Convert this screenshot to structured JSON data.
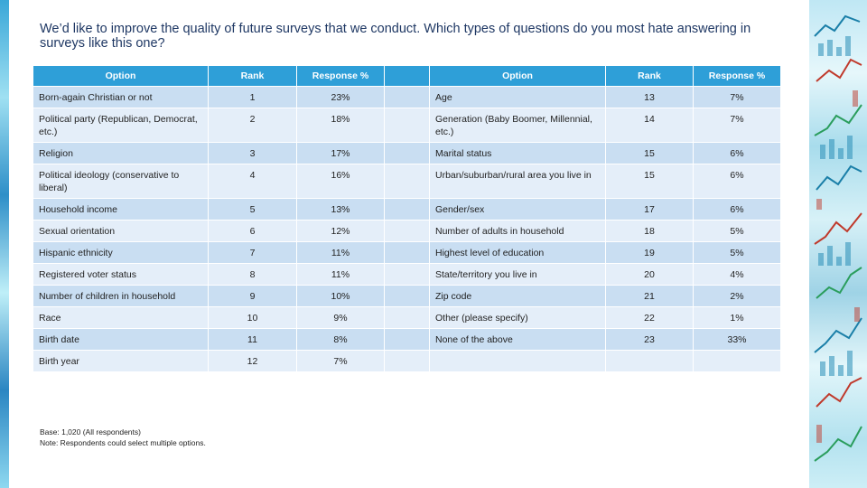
{
  "title": "We’d like to improve the quality of future surveys that we conduct. Which types of questions do you most hate answering in surveys like this one?",
  "table": {
    "headers": [
      "Option",
      "Rank",
      "Response %",
      "",
      "Option",
      "Rank",
      "Response %"
    ],
    "rows": [
      [
        "Born-again Christian or not",
        "1",
        "23%",
        "",
        "Age",
        "13",
        "7%"
      ],
      [
        "Political party (Republican, Democrat, etc.)",
        "2",
        "18%",
        "",
        "Generation (Baby Boomer, Millennial, etc.)",
        "14",
        "7%"
      ],
      [
        "Religion",
        "3",
        "17%",
        "",
        "Marital status",
        "15",
        "6%"
      ],
      [
        "Political ideology (conservative to liberal)",
        "4",
        "16%",
        "",
        "Urban/suburban/rural area you live in",
        "15",
        "6%"
      ],
      [
        "Household income",
        "5",
        "13%",
        "",
        "Gender/sex",
        "17",
        "6%"
      ],
      [
        "Sexual orientation",
        "6",
        "12%",
        "",
        "Number of adults in household",
        "18",
        "5%"
      ],
      [
        "Hispanic ethnicity",
        "7",
        "11%",
        "",
        "Highest level of education",
        "19",
        "5%"
      ],
      [
        "Registered voter status",
        "8",
        "11%",
        "",
        "State/territory you live in",
        "20",
        "4%"
      ],
      [
        "Number of children in household",
        "9",
        "10%",
        "",
        "Zip code",
        "21",
        "2%"
      ],
      [
        "Race",
        "10",
        "9%",
        "",
        "Other (please specify)",
        "22",
        "1%"
      ],
      [
        "Birth date",
        "11",
        "8%",
        "",
        "None of the above",
        "23",
        "33%"
      ],
      [
        "Birth year",
        "12",
        "7%",
        "",
        "",
        "",
        ""
      ]
    ]
  },
  "footnote": {
    "base": "Base: 1,020 (All respondents)",
    "note": "Note: Respondents could select multiple options."
  },
  "colors": {
    "header_bg": "#2e9fd8",
    "row_odd": "#c9def2",
    "row_even": "#e4eef9",
    "title": "#1f3864"
  }
}
